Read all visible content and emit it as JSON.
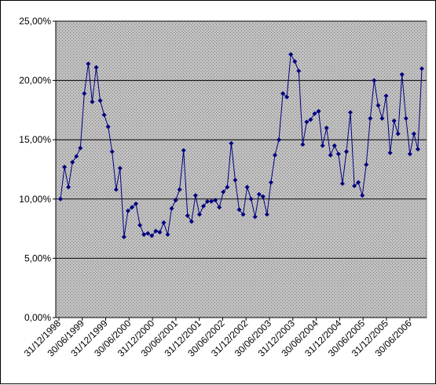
{
  "chart_data": {
    "type": "line",
    "title": "",
    "xlabel": "",
    "ylabel": "",
    "ylim": [
      0,
      25
    ],
    "y_tick_values": [
      0,
      5,
      10,
      15,
      20,
      25
    ],
    "y_tick_labels": [
      "0,00%",
      "5,00%",
      "10,00%",
      "15,00%",
      "20,00%",
      "25,00%"
    ],
    "x_tick_labels": [
      "31/12/1998",
      "30/06/1999",
      "31/12/1999",
      "30/06/2000",
      "31/12/2000",
      "30/06/2001",
      "31/12/2001",
      "30/06/2002",
      "31/12/2002",
      "30/06/2003",
      "31/12/2003",
      "30/06/2004",
      "31/12/2004",
      "30/06/2005",
      "31/12/2005",
      "30/06/2006"
    ],
    "grid": true,
    "legend": "none",
    "plot_background": "#c0c0c0",
    "series_color": "#000080",
    "series": [
      {
        "values": [
          10.0,
          12.7,
          11.0,
          13.1,
          13.6,
          14.3,
          18.9,
          21.4,
          18.2,
          21.1,
          18.3,
          17.1,
          16.1,
          14.0,
          10.8,
          12.6,
          6.8,
          9.0,
          9.3,
          9.6,
          7.8,
          7.0,
          7.1,
          6.9,
          7.3,
          7.2,
          8.0,
          7.0,
          9.2,
          9.9,
          10.8,
          14.1,
          8.6,
          8.1,
          10.3,
          8.7,
          9.4,
          9.8,
          9.8,
          9.9,
          9.3,
          10.6,
          11.0,
          14.7,
          11.6,
          9.1,
          8.7,
          11.0,
          10.0,
          8.5,
          10.4,
          10.2,
          8.7,
          11.4,
          13.7,
          15.0,
          18.9,
          18.6,
          22.2,
          21.6,
          20.8,
          14.6,
          16.5,
          16.7,
          17.2,
          17.4,
          14.5,
          16.0,
          13.7,
          14.5,
          13.8,
          11.3,
          14.0,
          17.3,
          11.1,
          11.4,
          10.3,
          12.9,
          16.8,
          20.0,
          17.9,
          16.8,
          18.7,
          13.9,
          16.6,
          15.5,
          20.5,
          16.8,
          13.8,
          15.5,
          14.2,
          21.0
        ]
      }
    ]
  }
}
